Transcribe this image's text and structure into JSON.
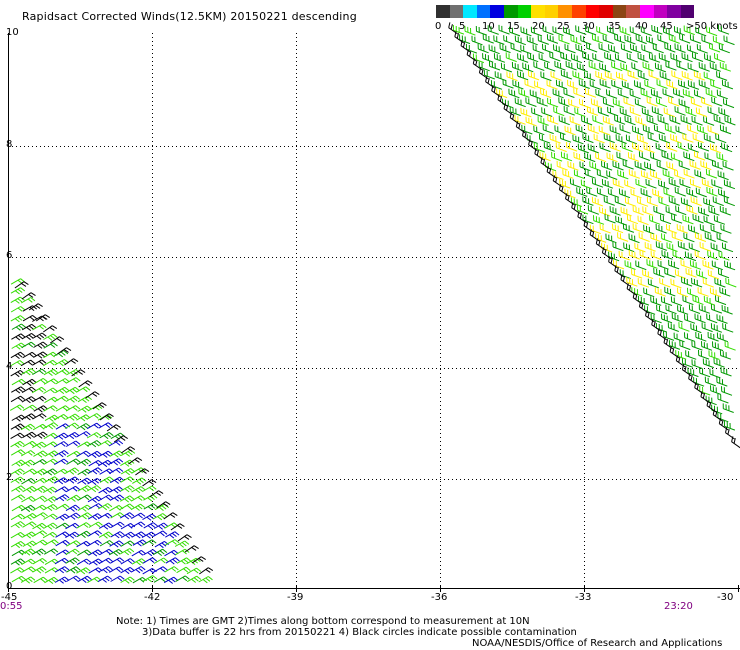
{
  "title": "Rapidsact Corrected Winds(12.5KM) 20150221 descending",
  "legend": {
    "labels": [
      "0",
      "5",
      "10",
      "15",
      "20",
      "25",
      "30",
      "35",
      "40",
      "45",
      ">50 knots"
    ],
    "colors": [
      "#303030",
      "#707070",
      "#00e8ff",
      "#0070ff",
      "#0000e0",
      "#009900",
      "#00d000",
      "#ffe000",
      "#ffd000",
      "#ff9000",
      "#ff4000",
      "#ff0000",
      "#e00000",
      "#8b4513",
      "#c05040",
      "#ff00ff",
      "#c000c0",
      "#8000a0",
      "#500070"
    ]
  },
  "axes": {
    "y_ticks": [
      "10",
      "8",
      "6",
      "4",
      "2",
      "0"
    ],
    "x_ticks": [
      "-45",
      "-42",
      "-39",
      "-36",
      "-33",
      "-30"
    ]
  },
  "times": {
    "left": "0:55",
    "right": "23:20"
  },
  "notes": {
    "line1": "Note: 1) Times are GMT 2)Times along bottom correspond to measurement at 10N",
    "line2": "3)Data buffer is 22 hrs from 20150221 4) Black circles indicate possible contamination"
  },
  "credit": "NOAA/NESDIS/Office of Research and Applications",
  "wind_colors": {
    "green": "#009900",
    "lightgreen": "#33dd00",
    "blue": "#0000cc",
    "yellow": "#ffee00",
    "black": "#000000"
  }
}
